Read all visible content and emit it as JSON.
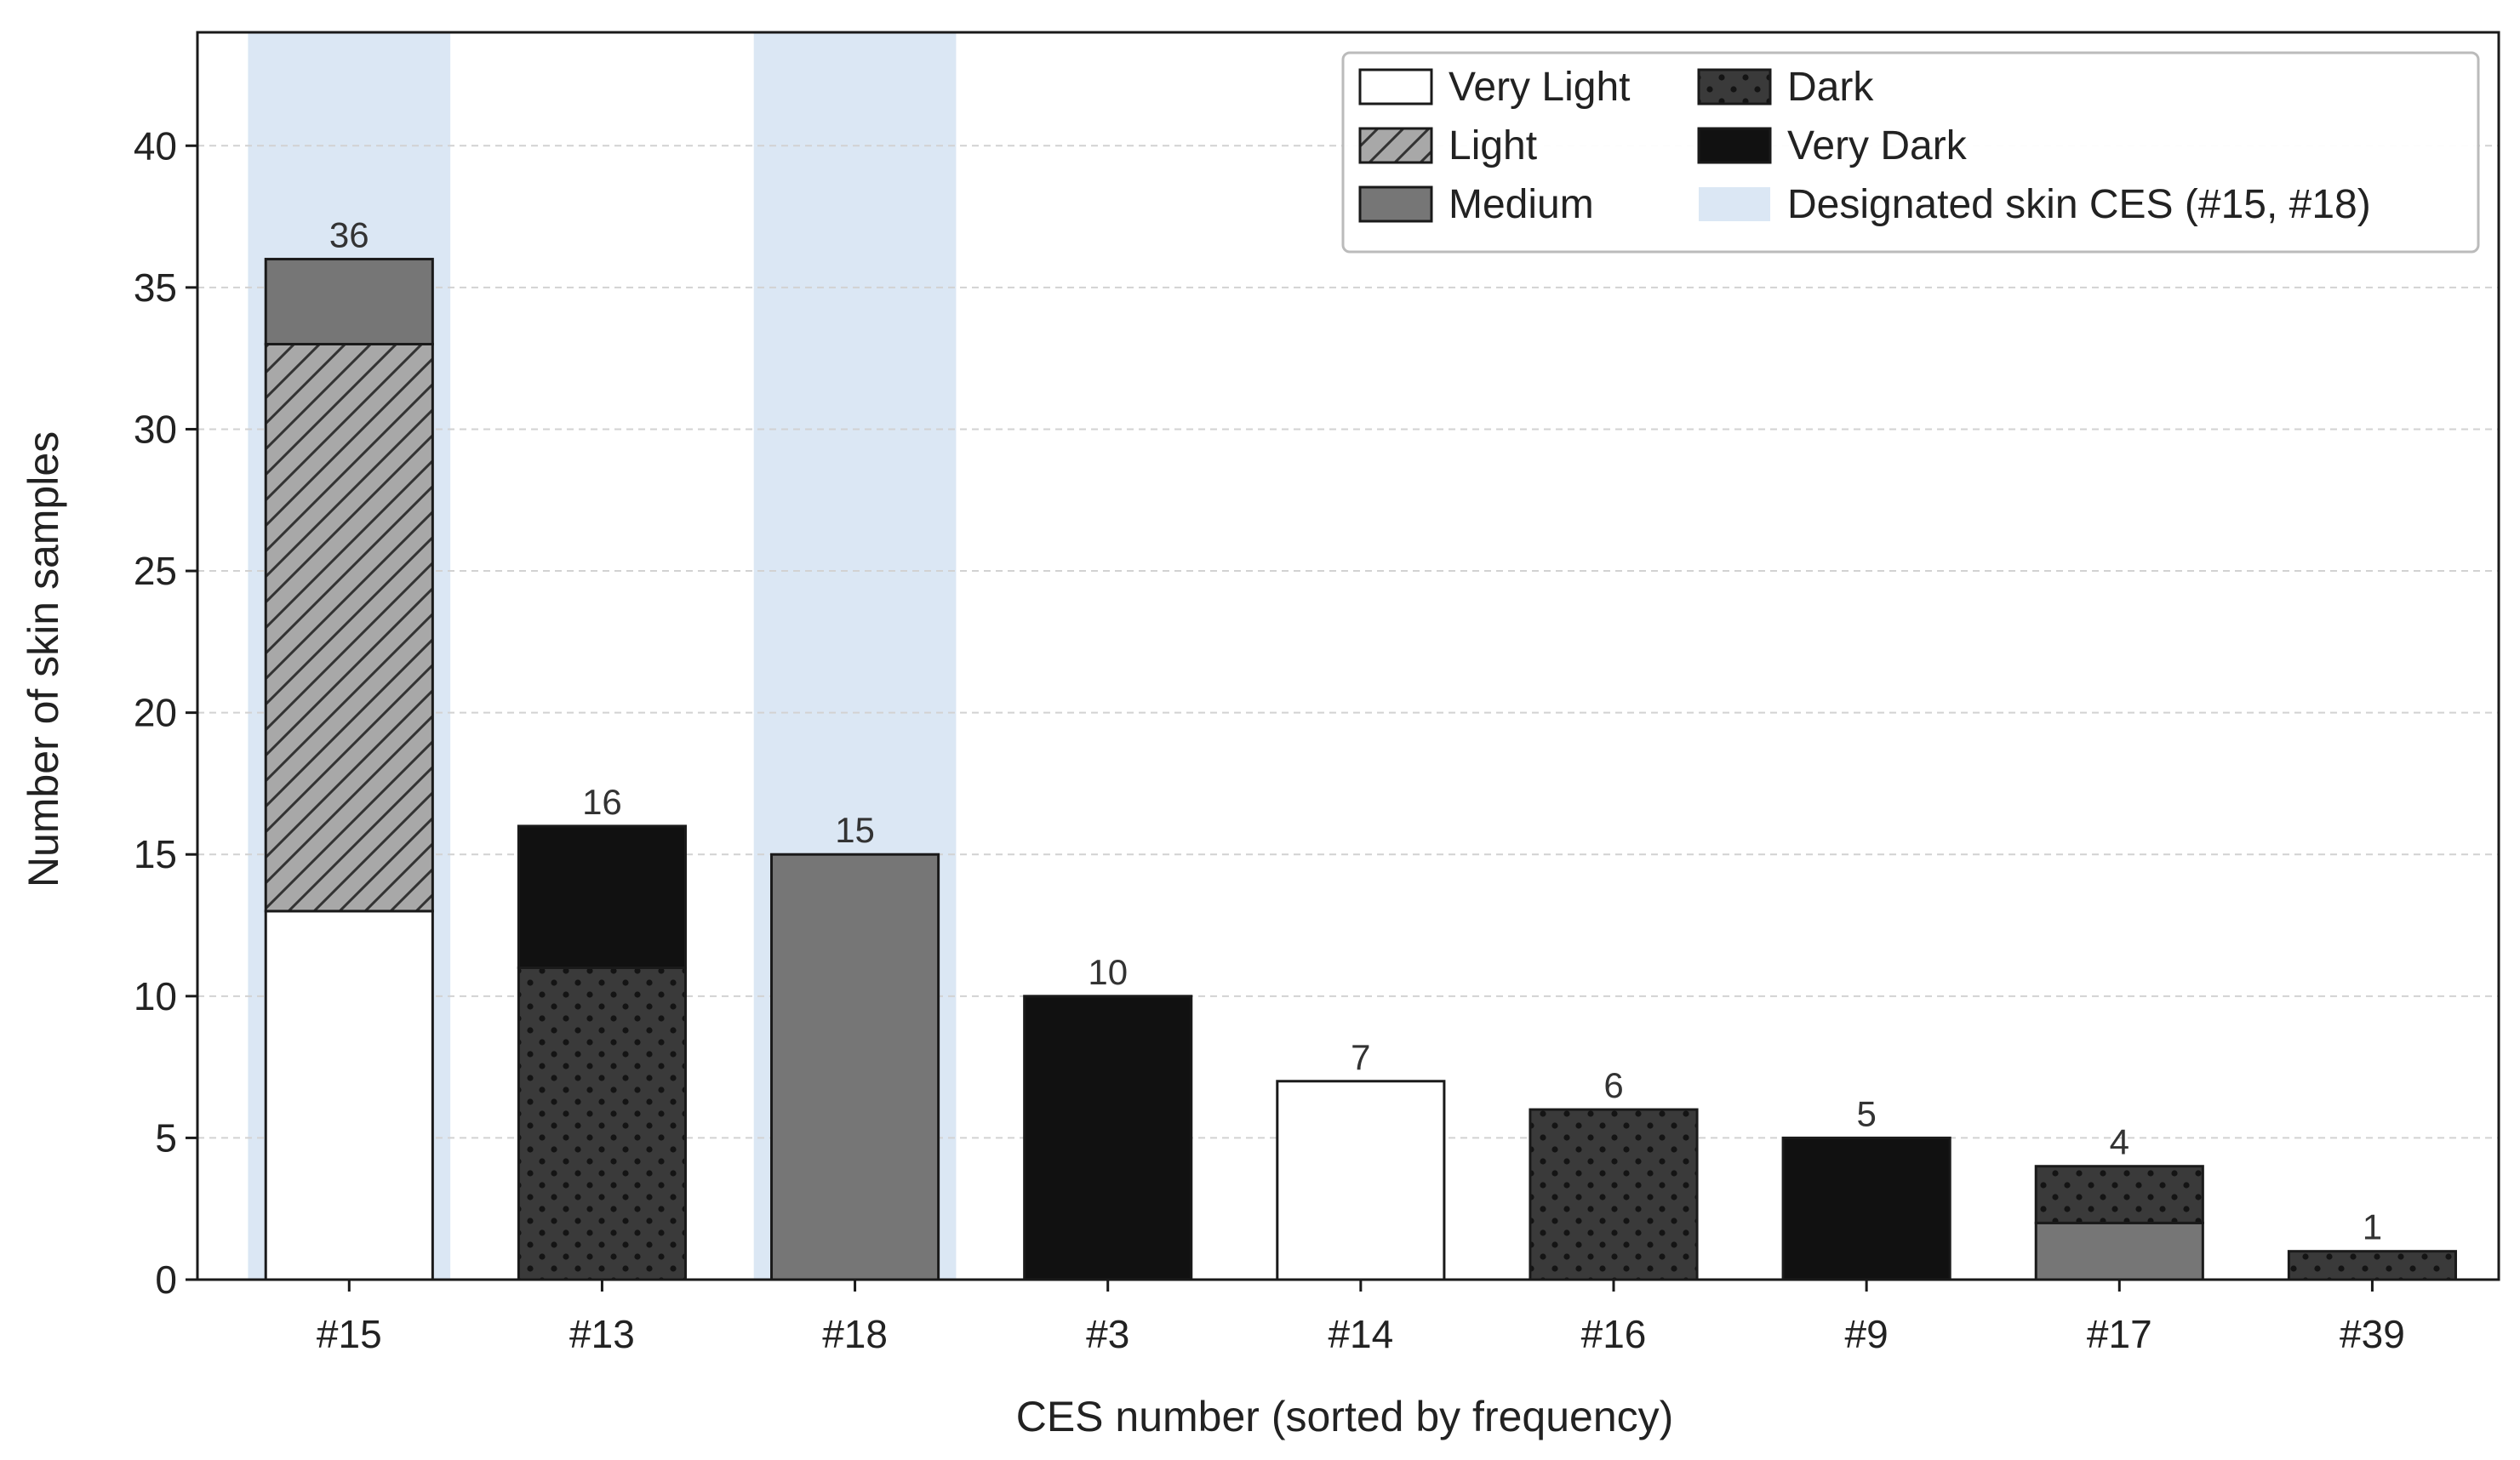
{
  "chart_data": {
    "type": "bar",
    "stacked": true,
    "xlabel": "CES number (sorted by frequency)",
    "ylabel": "Number of skin samples",
    "categories": [
      "#15",
      "#13",
      "#18",
      "#3",
      "#14",
      "#16",
      "#9",
      "#17",
      "#39"
    ],
    "series": [
      {
        "name": "Very Light",
        "values": [
          13,
          0,
          0,
          0,
          7,
          0,
          0,
          0,
          0
        ],
        "fill": "#ffffff",
        "pattern": "none"
      },
      {
        "name": "Light",
        "values": [
          20,
          0,
          0,
          0,
          0,
          0,
          0,
          0,
          0
        ],
        "fill": "#a8a8a8",
        "pattern": "hatch"
      },
      {
        "name": "Medium",
        "values": [
          3,
          0,
          15,
          0,
          0,
          0,
          0,
          2,
          0
        ],
        "fill": "#767676",
        "pattern": "none"
      },
      {
        "name": "Dark",
        "values": [
          0,
          11,
          0,
          0,
          0,
          6,
          0,
          2,
          1
        ],
        "fill": "#3a3a3a",
        "pattern": "dots"
      },
      {
        "name": "Very Dark",
        "values": [
          0,
          5,
          0,
          10,
          0,
          0,
          5,
          0,
          0
        ],
        "fill": "#111111",
        "pattern": "none"
      }
    ],
    "totals": [
      36,
      16,
      15,
      10,
      7,
      6,
      5,
      4,
      1
    ],
    "highlight": {
      "name": "Designated skin CES (#15, #18)",
      "categories": [
        "#15",
        "#18"
      ],
      "color": "#dbe7f4"
    },
    "yticks": [
      0,
      5,
      10,
      15,
      20,
      25,
      30,
      35,
      40
    ],
    "ylim": [
      0,
      44
    ],
    "grid": "y dashed",
    "legend_position": "top-right"
  }
}
